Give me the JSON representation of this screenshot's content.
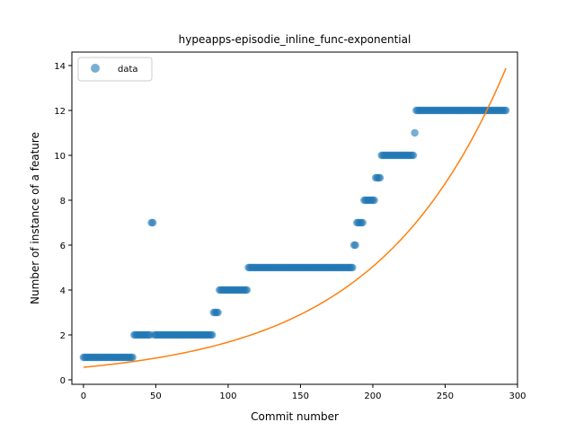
{
  "chart_data": {
    "type": "scatter",
    "title": "hypeapps-episodie_inline_func-exponential",
    "xlabel": "Commit number",
    "ylabel": "Number of instance of a feature",
    "xlim": [
      -8,
      300
    ],
    "ylim": [
      -0.2,
      14.6
    ],
    "xticks": [
      0,
      50,
      100,
      150,
      200,
      250,
      300
    ],
    "yticks": [
      0,
      2,
      4,
      6,
      8,
      10,
      12,
      14
    ],
    "grid": false,
    "legend": {
      "position": "top-left",
      "entries": [
        "data"
      ]
    },
    "colors": {
      "points": "#1f77b4",
      "fit": "#ff7f0e"
    },
    "series": [
      {
        "name": "data",
        "kind": "scatter",
        "segments": [
          {
            "x_start": 0,
            "x_end": 34,
            "y": 1
          },
          {
            "x_start": 35,
            "x_end": 46,
            "y": 2
          },
          {
            "x_start": 47,
            "x_end": 48,
            "y": 7
          },
          {
            "x_start": 49,
            "x_end": 89,
            "y": 2
          },
          {
            "x_start": 90,
            "x_end": 93,
            "y": 3
          },
          {
            "x_start": 94,
            "x_end": 113,
            "y": 4
          },
          {
            "x_start": 114,
            "x_end": 186,
            "y": 5
          },
          {
            "x_start": 187,
            "x_end": 188,
            "y": 6
          },
          {
            "x_start": 189,
            "x_end": 193,
            "y": 7
          },
          {
            "x_start": 194,
            "x_end": 201,
            "y": 8
          },
          {
            "x_start": 202,
            "x_end": 205,
            "y": 9
          },
          {
            "x_start": 206,
            "x_end": 228,
            "y": 10
          },
          {
            "x_start": 229,
            "x_end": 229,
            "y": 11
          },
          {
            "x_start": 230,
            "x_end": 292,
            "y": 12
          }
        ]
      },
      {
        "kind": "line",
        "fit": {
          "model": "exponential",
          "a": 0.559,
          "b": 0.011,
          "x_range": [
            0,
            292
          ]
        }
      }
    ]
  }
}
